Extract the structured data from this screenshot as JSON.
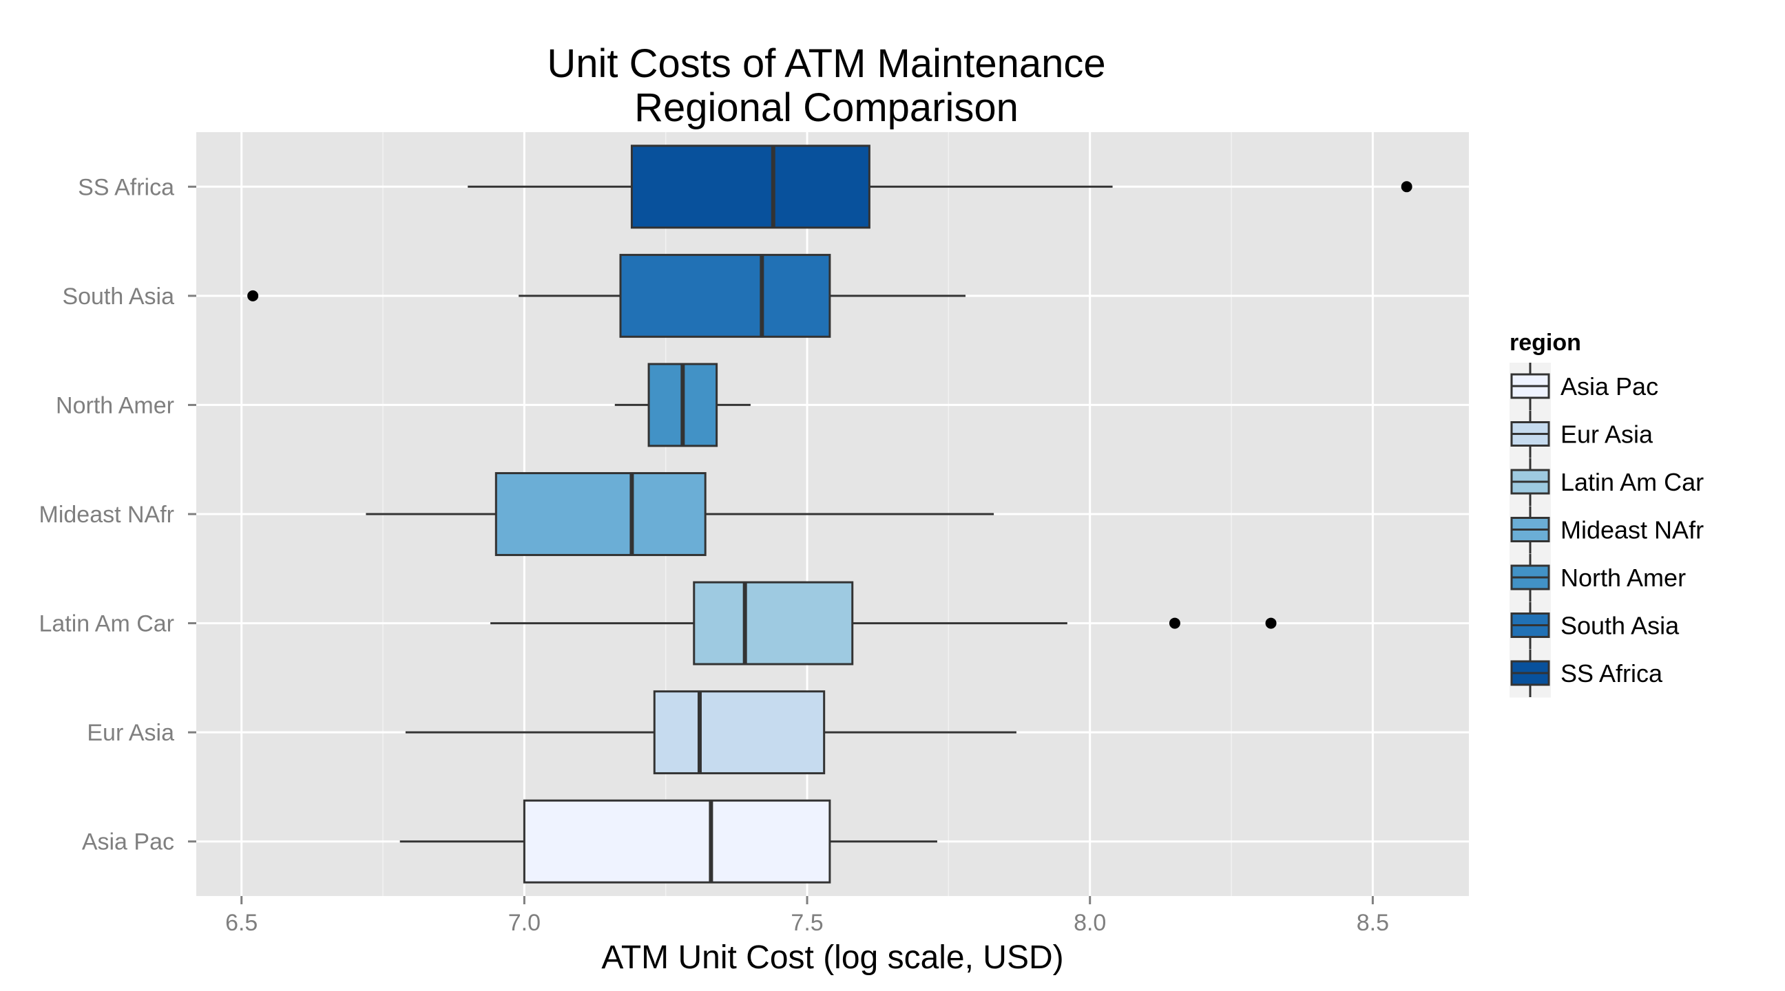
{
  "chart_data": {
    "type": "boxplot",
    "title": "Unit Costs of ATM Maintenance",
    "subtitle": "Regional Comparison",
    "xlabel": "ATM Unit Cost (log scale, USD)",
    "ylabel": "",
    "xlim": [
      6.42,
      8.67
    ],
    "x_ticks": [
      "6.5",
      "7.0",
      "7.5",
      "8.0",
      "8.5"
    ],
    "x_tick_values": [
      6.5,
      7.0,
      7.5,
      8.0,
      8.5
    ],
    "grid": true,
    "legend": {
      "title": "region",
      "position": "right"
    },
    "categories": [
      "Asia Pac",
      "Eur Asia",
      "Latin Am Car",
      "Mideast NAfr",
      "North Amer",
      "South Asia",
      "SS Africa"
    ],
    "series": [
      {
        "name": "Asia Pac",
        "color": "#eff3ff",
        "whisker_low": 6.78,
        "q1": 7.0,
        "median": 7.33,
        "q3": 7.54,
        "whisker_high": 7.73,
        "outliers": []
      },
      {
        "name": "Eur Asia",
        "color": "#c6dbef",
        "whisker_low": 6.79,
        "q1": 7.23,
        "median": 7.31,
        "q3": 7.53,
        "whisker_high": 7.87,
        "outliers": []
      },
      {
        "name": "Latin Am Car",
        "color": "#9ecae1",
        "whisker_low": 6.94,
        "q1": 7.3,
        "median": 7.39,
        "q3": 7.58,
        "whisker_high": 7.96,
        "outliers": [
          8.15,
          8.32
        ]
      },
      {
        "name": "Mideast NAfr",
        "color": "#6baed6",
        "whisker_low": 6.72,
        "q1": 6.95,
        "median": 7.19,
        "q3": 7.32,
        "whisker_high": 7.83,
        "outliers": []
      },
      {
        "name": "North Amer",
        "color": "#4292c6",
        "whisker_low": 7.16,
        "q1": 7.22,
        "median": 7.28,
        "q3": 7.34,
        "whisker_high": 7.4,
        "outliers": []
      },
      {
        "name": "South Asia",
        "color": "#2171b5",
        "whisker_low": 6.99,
        "q1": 7.17,
        "median": 7.42,
        "q3": 7.54,
        "whisker_high": 7.78,
        "outliers": [
          6.52
        ]
      },
      {
        "name": "SS Africa",
        "color": "#08519c",
        "whisker_low": 6.9,
        "q1": 7.19,
        "median": 7.44,
        "q3": 7.61,
        "whisker_high": 8.04,
        "outliers": [
          8.56
        ]
      }
    ]
  }
}
